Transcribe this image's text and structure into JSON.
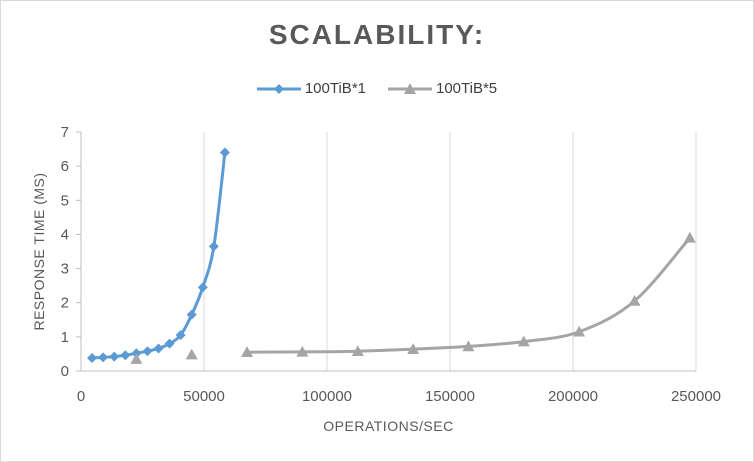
{
  "chart_data": {
    "type": "scatter",
    "title": "SCALABILITY:",
    "xlabel": "OPERATIONS/SEC",
    "ylabel": "RESPONSE TIME (MS)",
    "xlim": [
      0,
      250000
    ],
    "ylim": [
      0,
      7
    ],
    "x_ticks": [
      0,
      50000,
      100000,
      150000,
      200000,
      250000
    ],
    "y_ticks": [
      0,
      1,
      2,
      3,
      4,
      5,
      6,
      7
    ],
    "grid": "vertical",
    "legend_position": "top",
    "series": [
      {
        "name": "100TiB*1",
        "color": "#5b9bd5",
        "marker": "diamond",
        "x": [
          4500,
          9000,
          13500,
          18000,
          22500,
          27000,
          31500,
          36000,
          40500,
          45000,
          49500,
          54000,
          58500
        ],
        "y": [
          0.38,
          0.4,
          0.42,
          0.46,
          0.52,
          0.58,
          0.66,
          0.8,
          1.05,
          1.65,
          2.45,
          3.65,
          6.4
        ]
      },
      {
        "name": "100TiB*5",
        "color": "#a5a5a5",
        "marker": "triangle",
        "x": [
          22500,
          45000,
          67500,
          90000,
          112500,
          135000,
          157500,
          180000,
          202500,
          225000,
          247500
        ],
        "y": [
          0.35,
          0.48,
          0.55,
          0.56,
          0.58,
          0.64,
          0.72,
          0.86,
          1.15,
          2.05,
          3.9
        ]
      }
    ]
  }
}
